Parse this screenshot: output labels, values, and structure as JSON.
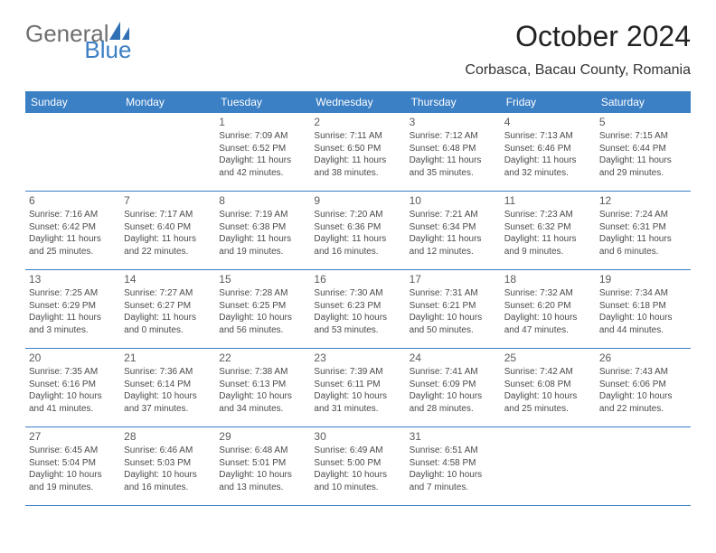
{
  "logo": {
    "general": "General",
    "blue": "Blue"
  },
  "header": {
    "title": "October 2024",
    "location": "Corbasca, Bacau County, Romania"
  },
  "colors": {
    "accent": "#3b7fc4",
    "head_text": "#ffffff",
    "body_text": "#4a4a4a",
    "title_text": "#222222",
    "logo_gray": "#6f6f6f",
    "background": "#ffffff"
  },
  "weekdays": [
    "Sunday",
    "Monday",
    "Tuesday",
    "Wednesday",
    "Thursday",
    "Friday",
    "Saturday"
  ],
  "cells": [
    {
      "blank": true
    },
    {
      "blank": true
    },
    {
      "n": "1",
      "sr": "Sunrise: 7:09 AM",
      "ss": "Sunset: 6:52 PM",
      "dl1": "Daylight: 11 hours",
      "dl2": "and 42 minutes."
    },
    {
      "n": "2",
      "sr": "Sunrise: 7:11 AM",
      "ss": "Sunset: 6:50 PM",
      "dl1": "Daylight: 11 hours",
      "dl2": "and 38 minutes."
    },
    {
      "n": "3",
      "sr": "Sunrise: 7:12 AM",
      "ss": "Sunset: 6:48 PM",
      "dl1": "Daylight: 11 hours",
      "dl2": "and 35 minutes."
    },
    {
      "n": "4",
      "sr": "Sunrise: 7:13 AM",
      "ss": "Sunset: 6:46 PM",
      "dl1": "Daylight: 11 hours",
      "dl2": "and 32 minutes."
    },
    {
      "n": "5",
      "sr": "Sunrise: 7:15 AM",
      "ss": "Sunset: 6:44 PM",
      "dl1": "Daylight: 11 hours",
      "dl2": "and 29 minutes."
    },
    {
      "n": "6",
      "sr": "Sunrise: 7:16 AM",
      "ss": "Sunset: 6:42 PM",
      "dl1": "Daylight: 11 hours",
      "dl2": "and 25 minutes."
    },
    {
      "n": "7",
      "sr": "Sunrise: 7:17 AM",
      "ss": "Sunset: 6:40 PM",
      "dl1": "Daylight: 11 hours",
      "dl2": "and 22 minutes."
    },
    {
      "n": "8",
      "sr": "Sunrise: 7:19 AM",
      "ss": "Sunset: 6:38 PM",
      "dl1": "Daylight: 11 hours",
      "dl2": "and 19 minutes."
    },
    {
      "n": "9",
      "sr": "Sunrise: 7:20 AM",
      "ss": "Sunset: 6:36 PM",
      "dl1": "Daylight: 11 hours",
      "dl2": "and 16 minutes."
    },
    {
      "n": "10",
      "sr": "Sunrise: 7:21 AM",
      "ss": "Sunset: 6:34 PM",
      "dl1": "Daylight: 11 hours",
      "dl2": "and 12 minutes."
    },
    {
      "n": "11",
      "sr": "Sunrise: 7:23 AM",
      "ss": "Sunset: 6:32 PM",
      "dl1": "Daylight: 11 hours",
      "dl2": "and 9 minutes."
    },
    {
      "n": "12",
      "sr": "Sunrise: 7:24 AM",
      "ss": "Sunset: 6:31 PM",
      "dl1": "Daylight: 11 hours",
      "dl2": "and 6 minutes."
    },
    {
      "n": "13",
      "sr": "Sunrise: 7:25 AM",
      "ss": "Sunset: 6:29 PM",
      "dl1": "Daylight: 11 hours",
      "dl2": "and 3 minutes."
    },
    {
      "n": "14",
      "sr": "Sunrise: 7:27 AM",
      "ss": "Sunset: 6:27 PM",
      "dl1": "Daylight: 11 hours",
      "dl2": "and 0 minutes."
    },
    {
      "n": "15",
      "sr": "Sunrise: 7:28 AM",
      "ss": "Sunset: 6:25 PM",
      "dl1": "Daylight: 10 hours",
      "dl2": "and 56 minutes."
    },
    {
      "n": "16",
      "sr": "Sunrise: 7:30 AM",
      "ss": "Sunset: 6:23 PM",
      "dl1": "Daylight: 10 hours",
      "dl2": "and 53 minutes."
    },
    {
      "n": "17",
      "sr": "Sunrise: 7:31 AM",
      "ss": "Sunset: 6:21 PM",
      "dl1": "Daylight: 10 hours",
      "dl2": "and 50 minutes."
    },
    {
      "n": "18",
      "sr": "Sunrise: 7:32 AM",
      "ss": "Sunset: 6:20 PM",
      "dl1": "Daylight: 10 hours",
      "dl2": "and 47 minutes."
    },
    {
      "n": "19",
      "sr": "Sunrise: 7:34 AM",
      "ss": "Sunset: 6:18 PM",
      "dl1": "Daylight: 10 hours",
      "dl2": "and 44 minutes."
    },
    {
      "n": "20",
      "sr": "Sunrise: 7:35 AM",
      "ss": "Sunset: 6:16 PM",
      "dl1": "Daylight: 10 hours",
      "dl2": "and 41 minutes."
    },
    {
      "n": "21",
      "sr": "Sunrise: 7:36 AM",
      "ss": "Sunset: 6:14 PM",
      "dl1": "Daylight: 10 hours",
      "dl2": "and 37 minutes."
    },
    {
      "n": "22",
      "sr": "Sunrise: 7:38 AM",
      "ss": "Sunset: 6:13 PM",
      "dl1": "Daylight: 10 hours",
      "dl2": "and 34 minutes."
    },
    {
      "n": "23",
      "sr": "Sunrise: 7:39 AM",
      "ss": "Sunset: 6:11 PM",
      "dl1": "Daylight: 10 hours",
      "dl2": "and 31 minutes."
    },
    {
      "n": "24",
      "sr": "Sunrise: 7:41 AM",
      "ss": "Sunset: 6:09 PM",
      "dl1": "Daylight: 10 hours",
      "dl2": "and 28 minutes."
    },
    {
      "n": "25",
      "sr": "Sunrise: 7:42 AM",
      "ss": "Sunset: 6:08 PM",
      "dl1": "Daylight: 10 hours",
      "dl2": "and 25 minutes."
    },
    {
      "n": "26",
      "sr": "Sunrise: 7:43 AM",
      "ss": "Sunset: 6:06 PM",
      "dl1": "Daylight: 10 hours",
      "dl2": "and 22 minutes."
    },
    {
      "n": "27",
      "sr": "Sunrise: 6:45 AM",
      "ss": "Sunset: 5:04 PM",
      "dl1": "Daylight: 10 hours",
      "dl2": "and 19 minutes."
    },
    {
      "n": "28",
      "sr": "Sunrise: 6:46 AM",
      "ss": "Sunset: 5:03 PM",
      "dl1": "Daylight: 10 hours",
      "dl2": "and 16 minutes."
    },
    {
      "n": "29",
      "sr": "Sunrise: 6:48 AM",
      "ss": "Sunset: 5:01 PM",
      "dl1": "Daylight: 10 hours",
      "dl2": "and 13 minutes."
    },
    {
      "n": "30",
      "sr": "Sunrise: 6:49 AM",
      "ss": "Sunset: 5:00 PM",
      "dl1": "Daylight: 10 hours",
      "dl2": "and 10 minutes."
    },
    {
      "n": "31",
      "sr": "Sunrise: 6:51 AM",
      "ss": "Sunset: 4:58 PM",
      "dl1": "Daylight: 10 hours",
      "dl2": "and 7 minutes."
    },
    {
      "blank": true
    },
    {
      "blank": true
    }
  ]
}
